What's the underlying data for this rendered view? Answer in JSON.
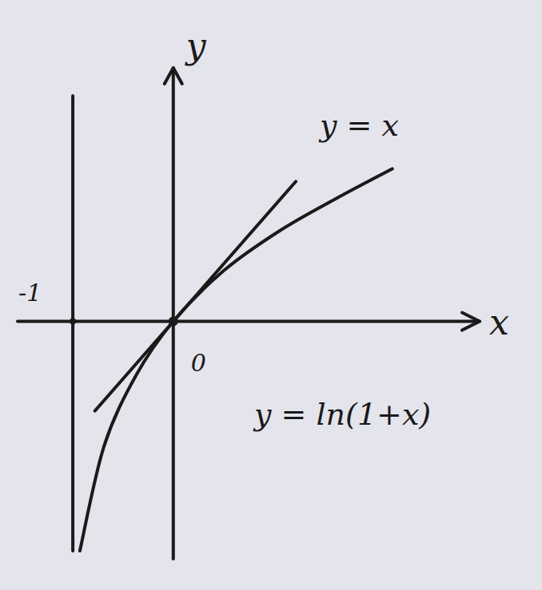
{
  "chart_data": {
    "type": "line",
    "xlabel": "x",
    "ylabel": "y",
    "xlim": [
      -1.55,
      3.05
    ],
    "ylim": [
      -2.07,
      2.21
    ],
    "xticks": [
      -1,
      0
    ],
    "yticks": [],
    "tick_labels": "x",
    "grid": false,
    "series": [
      {
        "name": "y = x",
        "color": "#1a1a1a",
        "line_style": "solid",
        "x": [
          -0.78,
          1.22
        ],
        "values": [
          -0.78,
          1.22
        ]
      },
      {
        "name": "y = ln(1+x)",
        "color": "#1a1a1a",
        "line_style": "solid",
        "x": [
          -0.93,
          -0.69,
          -0.37,
          0,
          0.5,
          1.06,
          1.62,
          2.18
        ],
        "values": [
          -2.0,
          -1.09,
          -0.47,
          0,
          0.44,
          0.79,
          1.07,
          1.33
        ]
      }
    ]
  }
}
